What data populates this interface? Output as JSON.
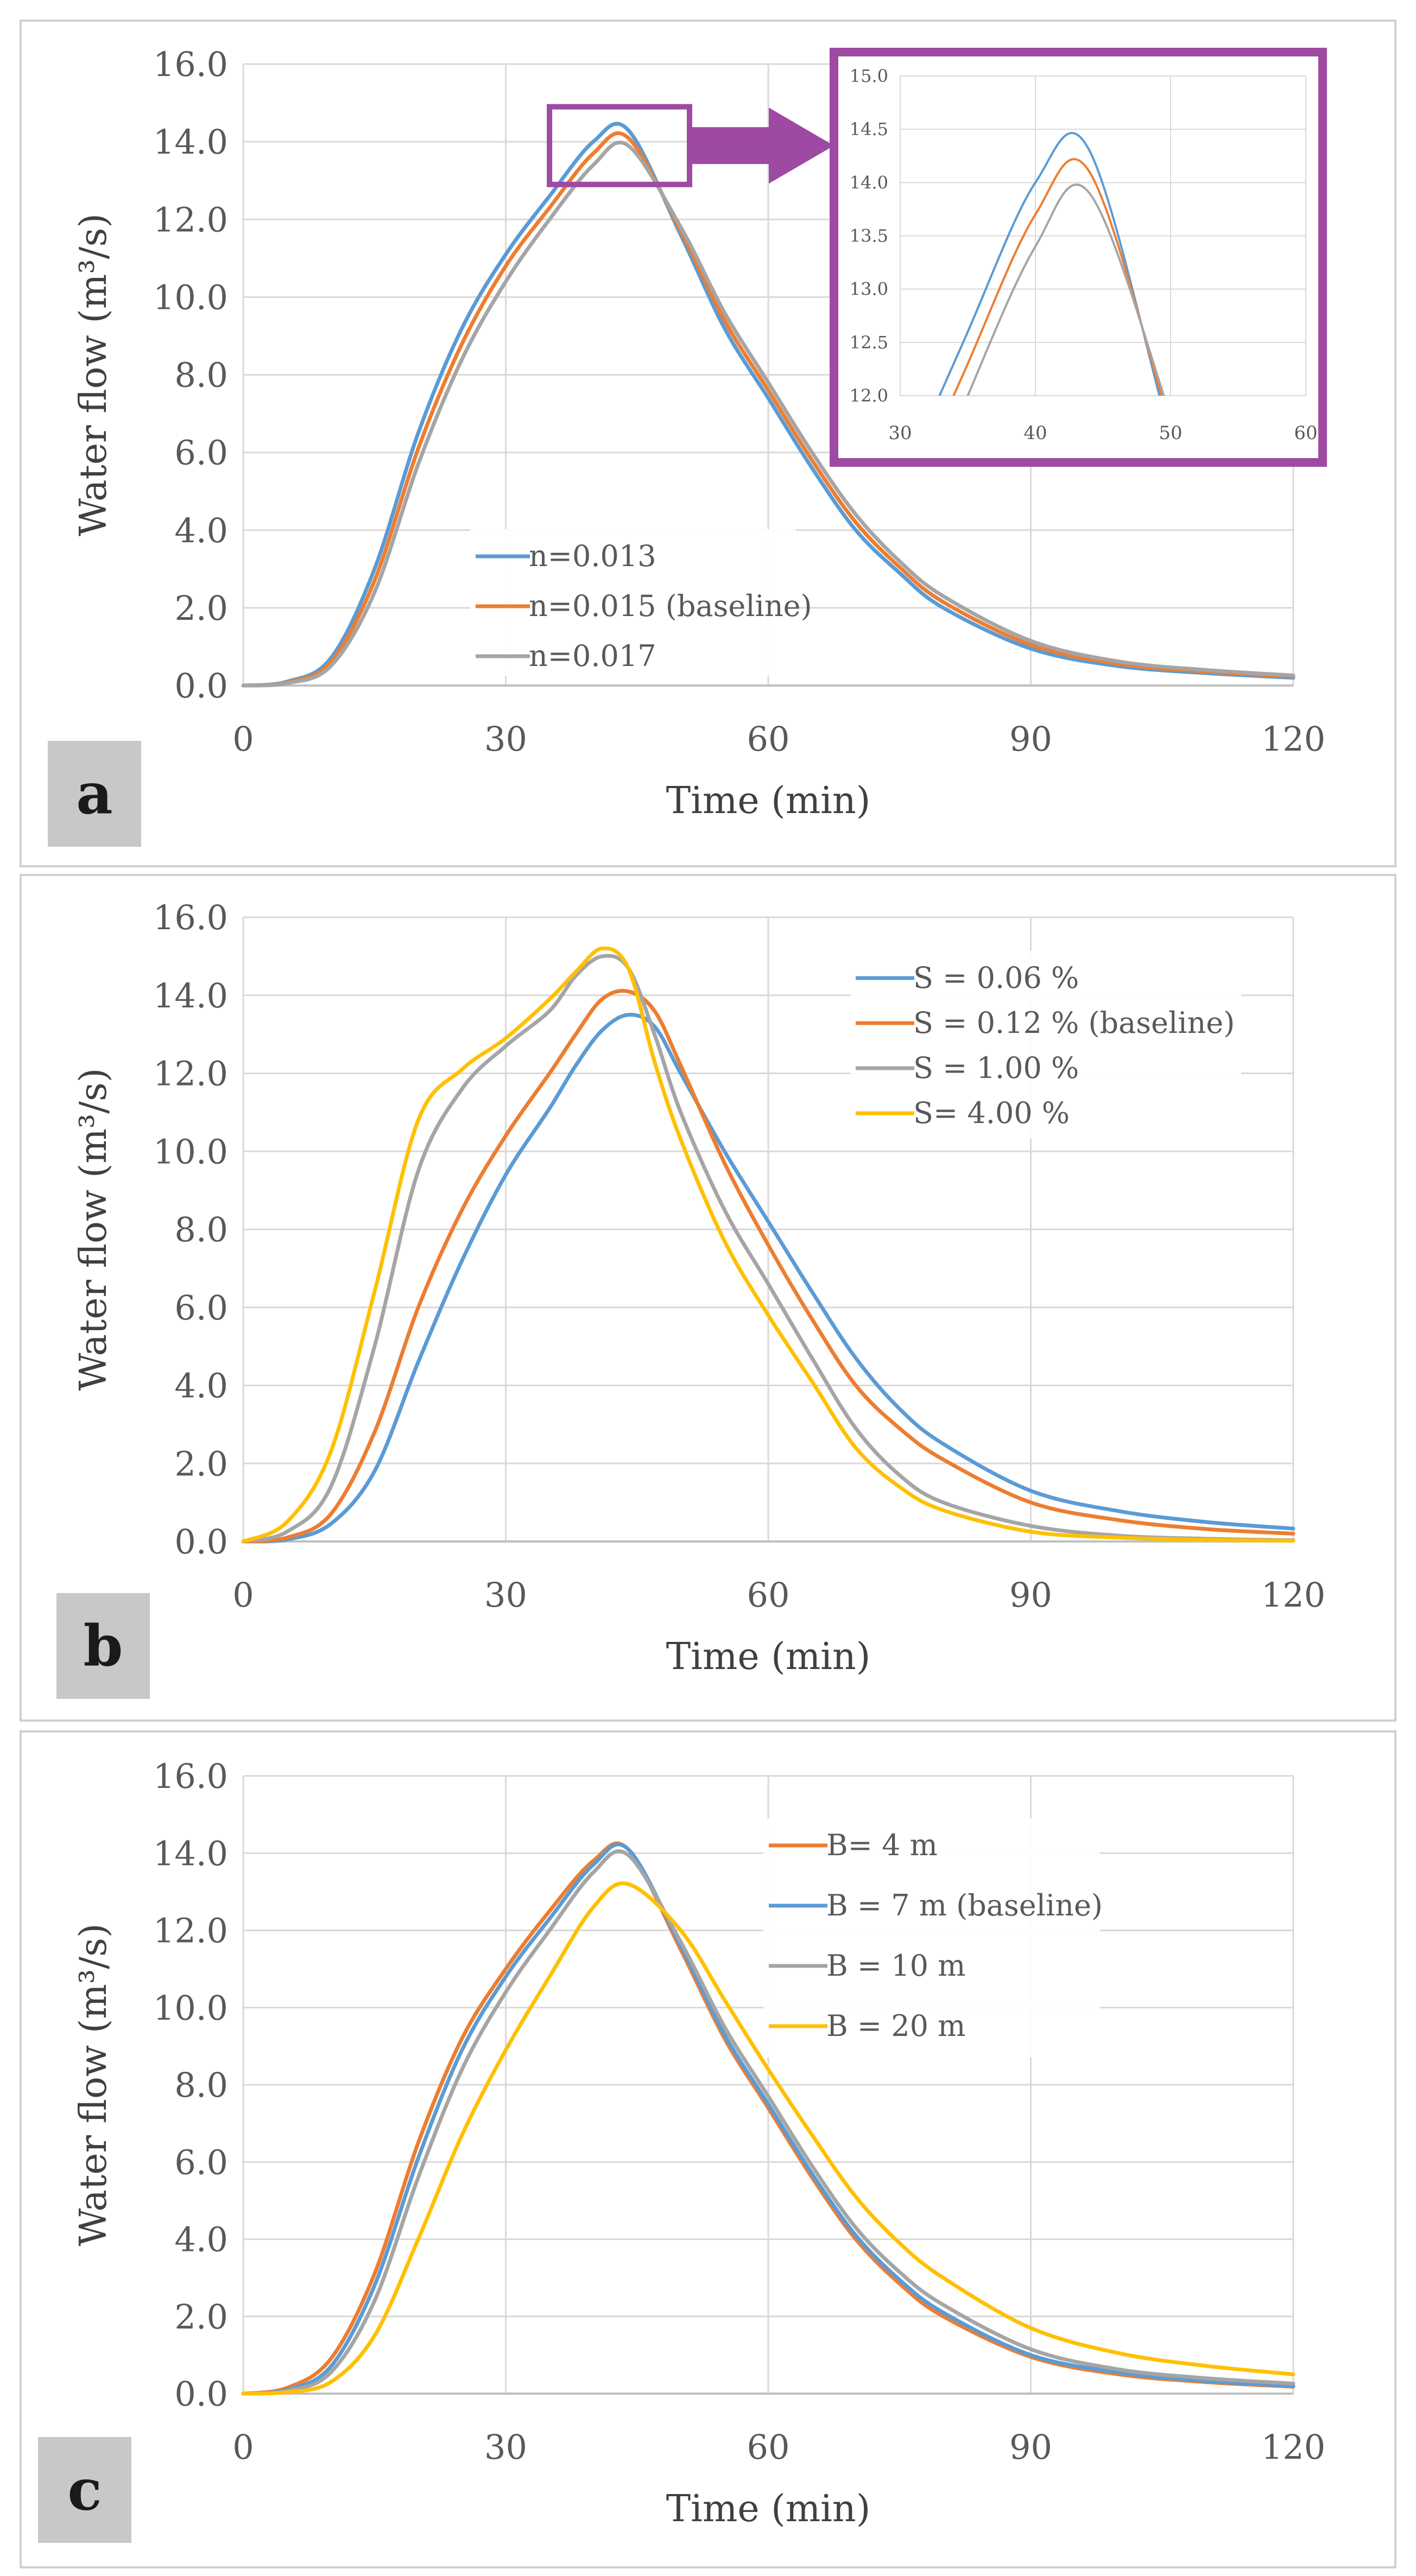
{
  "colors": {
    "blue": "#5b9bd5",
    "orange": "#ed7d31",
    "gray": "#a5a5a5",
    "yellow": "#ffc000",
    "purple": "#9e4aa3",
    "grid": "#d9d9d9",
    "axis_text": "#595959",
    "panel_tag_bg": "#c8c8c8"
  },
  "chart_data": [
    {
      "panel": "a",
      "type": "line",
      "xlabel": "Time (min)",
      "ylabel": "Water flow (m³/s)",
      "xlim": [
        0,
        120
      ],
      "ylim": [
        0,
        16
      ],
      "xticks": [
        "0",
        "30",
        "60",
        "90",
        "120"
      ],
      "yticks": [
        "0.0",
        "2.0",
        "4.0",
        "6.0",
        "8.0",
        "10.0",
        "12.0",
        "14.0",
        "16.0"
      ],
      "x": [
        0,
        5,
        10,
        15,
        20,
        25,
        30,
        35,
        40,
        44,
        50,
        55,
        60,
        65,
        70,
        75,
        80,
        90,
        100,
        110,
        120
      ],
      "legend_position": "lower-left",
      "series": [
        {
          "name": "n=0.013",
          "color": "#5b9bd5",
          "values": [
            0,
            0.1,
            0.7,
            3.0,
            6.5,
            9.2,
            11.1,
            12.6,
            14.0,
            14.3,
            11.6,
            9.2,
            7.4,
            5.6,
            4.0,
            2.9,
            2.0,
            0.95,
            0.5,
            0.32,
            0.2
          ]
        },
        {
          "name": "n=0.015 (baseline)",
          "color": "#ed7d31",
          "values": [
            0,
            0.08,
            0.6,
            2.7,
            6.1,
            8.8,
            10.8,
            12.3,
            13.7,
            14.1,
            11.7,
            9.4,
            7.6,
            5.8,
            4.2,
            3.05,
            2.15,
            1.05,
            0.56,
            0.36,
            0.23
          ]
        },
        {
          "name": "n=0.017",
          "color": "#a5a5a5",
          "values": [
            0,
            0.06,
            0.5,
            2.4,
            5.7,
            8.4,
            10.4,
            12.0,
            13.4,
            13.9,
            11.8,
            9.6,
            7.8,
            6.0,
            4.4,
            3.2,
            2.3,
            1.15,
            0.62,
            0.4,
            0.26
          ]
        }
      ],
      "inset": {
        "xlim": [
          30,
          60
        ],
        "ylim": [
          12.0,
          15.0
        ],
        "xticks": [
          "30",
          "40",
          "50",
          "60"
        ],
        "yticks": [
          "12.0",
          "12.5",
          "13.0",
          "13.5",
          "14.0",
          "14.5",
          "15.0"
        ]
      }
    },
    {
      "panel": "b",
      "type": "line",
      "xlabel": "Time (min)",
      "ylabel": "Water flow (m³/s)",
      "xlim": [
        0,
        120
      ],
      "ylim": [
        0,
        16
      ],
      "xticks": [
        "0",
        "30",
        "60",
        "90",
        "120"
      ],
      "yticks": [
        "0.0",
        "2.0",
        "4.0",
        "6.0",
        "8.0",
        "10.0",
        "12.0",
        "14.0",
        "16.0"
      ],
      "x": [
        0,
        5,
        10,
        15,
        20,
        25,
        30,
        35,
        38,
        41,
        44,
        47,
        50,
        55,
        60,
        65,
        70,
        75,
        80,
        90,
        100,
        110,
        120
      ],
      "legend_position": "top-right",
      "series": [
        {
          "name": "S = 0.06 %",
          "color": "#5b9bd5",
          "values": [
            0,
            0.05,
            0.45,
            1.8,
            4.6,
            7.2,
            9.4,
            11.1,
            12.2,
            13.1,
            13.5,
            13.2,
            12.0,
            10.0,
            8.2,
            6.4,
            4.7,
            3.4,
            2.5,
            1.3,
            0.78,
            0.5,
            0.33
          ]
        },
        {
          "name": "S = 0.12 % (baseline)",
          "color": "#ed7d31",
          "values": [
            0,
            0.1,
            0.7,
            2.8,
            6.0,
            8.5,
            10.4,
            12.0,
            13.0,
            13.9,
            14.1,
            13.6,
            12.2,
            9.7,
            7.6,
            5.7,
            4.0,
            2.9,
            2.1,
            1.0,
            0.55,
            0.32,
            0.2
          ]
        },
        {
          "name": "S = 1.00 %",
          "color": "#a5a5a5",
          "values": [
            0,
            0.25,
            1.4,
            5.0,
            9.5,
            11.6,
            12.7,
            13.6,
            14.5,
            15.0,
            14.7,
            13.0,
            11.0,
            8.5,
            6.6,
            4.7,
            2.9,
            1.7,
            1.0,
            0.4,
            0.15,
            0.07,
            0.03
          ]
        },
        {
          "name": "S= 4.00 %",
          "color": "#ffc000",
          "values": [
            0,
            0.5,
            2.3,
            6.4,
            10.8,
            12.1,
            12.9,
            13.9,
            14.6,
            15.2,
            14.7,
            12.3,
            10.3,
            7.7,
            5.8,
            4.1,
            2.4,
            1.4,
            0.8,
            0.25,
            0.1,
            0.04,
            0.02
          ]
        }
      ]
    },
    {
      "panel": "c",
      "type": "line",
      "xlabel": "Time (min)",
      "ylabel": "Water flow (m³/s)",
      "xlim": [
        0,
        120
      ],
      "ylim": [
        0,
        16
      ],
      "xticks": [
        "0",
        "30",
        "60",
        "90",
        "120"
      ],
      "yticks": [
        "0.0",
        "2.0",
        "4.0",
        "6.0",
        "8.0",
        "10.0",
        "12.0",
        "14.0",
        "16.0"
      ],
      "x": [
        0,
        5,
        10,
        15,
        20,
        25,
        30,
        35,
        40,
        44,
        50,
        55,
        60,
        65,
        70,
        75,
        80,
        90,
        100,
        110,
        120
      ],
      "legend_position": "top-right",
      "series": [
        {
          "name": "B= 4 m",
          "color": "#ed7d31",
          "values": [
            0,
            0.15,
            0.9,
            3.1,
            6.5,
            9.2,
            11.0,
            12.5,
            13.8,
            14.1,
            11.5,
            9.2,
            7.4,
            5.6,
            4.0,
            2.85,
            2.0,
            0.95,
            0.5,
            0.3,
            0.18
          ]
        },
        {
          "name": "B = 7 m (baseline)",
          "color": "#5b9bd5",
          "values": [
            0,
            0.1,
            0.7,
            2.8,
            6.1,
            8.9,
            10.8,
            12.3,
            13.7,
            14.1,
            11.6,
            9.3,
            7.5,
            5.7,
            4.1,
            2.95,
            2.1,
            1.0,
            0.55,
            0.33,
            0.2
          ]
        },
        {
          "name": "B = 10 m",
          "color": "#a5a5a5",
          "values": [
            0,
            0.07,
            0.55,
            2.4,
            5.6,
            8.4,
            10.4,
            12.0,
            13.5,
            13.95,
            11.7,
            9.5,
            7.7,
            5.9,
            4.3,
            3.15,
            2.3,
            1.15,
            0.63,
            0.4,
            0.26
          ]
        },
        {
          "name": "B = 20 m",
          "color": "#ffc000",
          "values": [
            0,
            0.04,
            0.3,
            1.5,
            4.0,
            6.7,
            8.9,
            10.8,
            12.6,
            13.2,
            12.0,
            10.2,
            8.4,
            6.7,
            5.1,
            3.9,
            3.0,
            1.7,
            1.05,
            0.72,
            0.5
          ]
        }
      ]
    }
  ]
}
